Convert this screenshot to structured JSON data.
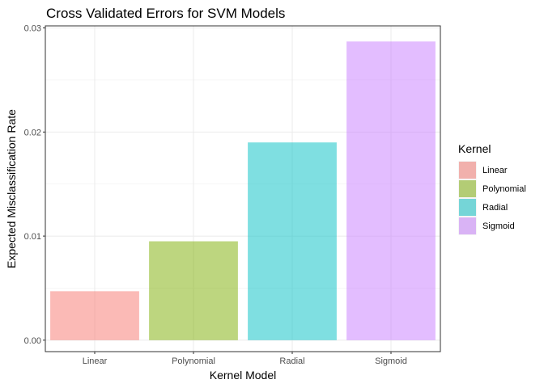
{
  "chart_data": {
    "type": "bar",
    "title": "Cross Validated Errors for SVM Models",
    "xlabel": "Kernel Model",
    "ylabel": "Expected Misclassification Rate",
    "categories": [
      "Linear",
      "Polynomial",
      "Radial",
      "Sigmoid"
    ],
    "values": [
      0.0047,
      0.0095,
      0.019,
      0.0287
    ],
    "colors": [
      "#F8766D",
      "#7CAE00",
      "#00BFC4",
      "#C77CFF"
    ],
    "bar_opacity": 0.5,
    "ylim": [
      -0.0011,
      0.0302
    ],
    "yticks": [
      0.0,
      0.01,
      0.02,
      0.03
    ],
    "ytick_labels": [
      "0.00",
      "0.01",
      "0.02",
      "0.03"
    ],
    "grid": true,
    "legend": {
      "title": "Kernel",
      "placement": "right",
      "entries": [
        "Linear",
        "Polynomial",
        "Radial",
        "Sigmoid"
      ]
    }
  }
}
